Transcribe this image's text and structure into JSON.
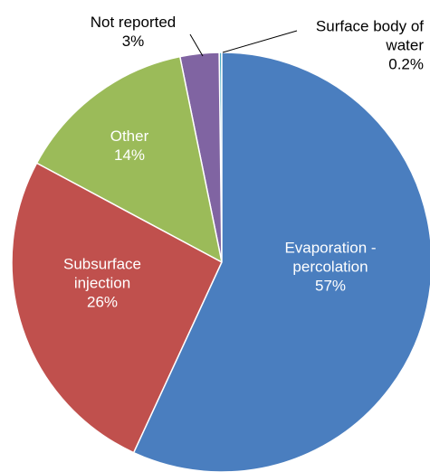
{
  "chart_data": {
    "type": "pie",
    "categories": [
      "Evaporation - percolation",
      "Subsurface injection",
      "Other",
      "Not reported",
      "Surface body of water"
    ],
    "values": [
      57,
      26,
      14,
      3,
      0.2
    ],
    "value_labels": [
      "57%",
      "26%",
      "14%",
      "3%",
      "0.2%"
    ],
    "colors": [
      "#4a7ebf",
      "#c0504d",
      "#9bbb59",
      "#8064a2",
      "#4bacc6"
    ]
  }
}
